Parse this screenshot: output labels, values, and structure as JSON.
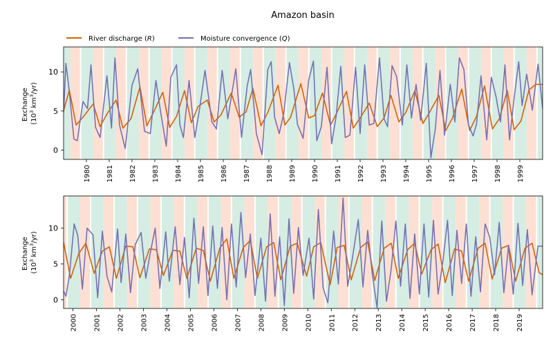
{
  "title": "Amazon basin",
  "legend": {
    "placement": "top-left, above panels",
    "items": [
      {
        "label": "River discharge (R)",
        "label_main": "River discharge (",
        "label_symbol": "R",
        "label_end": ")",
        "color": "#d95f02"
      },
      {
        "label": "Moisture convergence (Q)",
        "label_main": "Moisture convergence (",
        "label_symbol": "Q",
        "label_end": ")",
        "color": "#7570b3"
      }
    ]
  },
  "colors": {
    "wet_band": "#d5ede3",
    "dry_band": "#fde0d3",
    "discharge": "#d95f02",
    "convergence": "#7570b3"
  },
  "chart_data": [
    {
      "type": "line",
      "panel": "top",
      "ylabel": "Exchange (10^3 km^3/yr)",
      "ylabel_line1": "Exchange",
      "ylabel_line2_pre": "(10",
      "ylabel_line2_sup": "3",
      "ylabel_line2_mid": " km",
      "ylabel_line2_sup2": "3",
      "ylabel_line2_post": "/yr)",
      "xlim": [
        1979.0,
        2000.0
      ],
      "ylim": [
        -1.2,
        13.2
      ],
      "yticks": [
        0,
        5,
        10
      ],
      "xtick_labels": [
        "1980",
        "1981",
        "1982",
        "1983",
        "1984",
        "1985",
        "1986",
        "1987",
        "1988",
        "1989",
        "1990",
        "1991",
        "1992",
        "1993",
        "1994",
        "1995",
        "1996",
        "1997",
        "1998",
        "1999"
      ],
      "grid": false,
      "band_note": "Alternating shaded seasonal bands (green and salmon) each year",
      "series": [
        {
          "name": "River discharge (R)",
          "x": [
            1979.0,
            1979.25,
            1979.55,
            1979.85,
            1980.3,
            1980.6,
            1980.9,
            1981.3,
            1981.6,
            1981.95,
            1982.35,
            1982.65,
            1982.95,
            1983.35,
            1983.65,
            1983.95,
            1984.3,
            1984.6,
            1984.9,
            1985.3,
            1985.6,
            1985.9,
            1986.35,
            1986.7,
            1987.0,
            1987.3,
            1987.65,
            1987.95,
            1988.4,
            1988.7,
            1988.95,
            1989.4,
            1989.75,
            1990.0,
            1990.35,
            1990.7,
            1990.95,
            1991.4,
            1991.7,
            1992.0,
            1992.4,
            1992.75,
            1993.05,
            1993.35,
            1993.7,
            1994.0,
            1994.4,
            1994.75,
            1995.0,
            1995.45,
            1995.75,
            1996.05,
            1996.45,
            1996.8,
            1997.1,
            1997.45,
            1997.8,
            1998.1,
            1998.45,
            1998.75,
            1999.05,
            1999.4,
            1999.7,
            2000.0
          ],
          "values": [
            5.0,
            7.7,
            3.2,
            4.2,
            5.9,
            3.0,
            4.6,
            6.4,
            2.8,
            4.0,
            8.1,
            3.1,
            4.9,
            7.4,
            2.9,
            4.3,
            7.6,
            3.5,
            5.6,
            6.4,
            3.6,
            4.5,
            7.3,
            4.2,
            4.9,
            7.9,
            3.1,
            4.8,
            8.3,
            3.2,
            4.2,
            8.5,
            4.1,
            4.4,
            7.3,
            3.2,
            4.6,
            7.5,
            2.8,
            4.1,
            6.0,
            3.0,
            4.1,
            7.0,
            3.6,
            4.8,
            7.6,
            3.4,
            4.6,
            7.0,
            2.5,
            4.1,
            7.8,
            2.5,
            4.3,
            8.2,
            2.7,
            4.0,
            7.6,
            2.6,
            3.7,
            7.7,
            8.4,
            8.4
          ]
        },
        {
          "name": "Moisture convergence (Q)",
          "x": [
            1979.0,
            1979.1,
            1979.25,
            1979.45,
            1979.6,
            1979.85,
            1980.05,
            1980.2,
            1980.4,
            1980.6,
            1980.9,
            1981.1,
            1981.25,
            1981.45,
            1981.7,
            1982.0,
            1982.25,
            1982.55,
            1982.8,
            1983.05,
            1983.25,
            1983.5,
            1983.7,
            1983.95,
            1984.1,
            1984.25,
            1984.5,
            1984.75,
            1984.95,
            1985.2,
            1985.5,
            1985.7,
            1985.95,
            1986.2,
            1986.55,
            1986.8,
            1987.05,
            1987.2,
            1987.45,
            1987.7,
            1987.95,
            1988.1,
            1988.25,
            1988.45,
            1988.65,
            1988.9,
            1989.1,
            1989.25,
            1989.5,
            1989.75,
            1989.95,
            1990.1,
            1990.3,
            1990.55,
            1990.75,
            1990.95,
            1991.15,
            1991.35,
            1991.55,
            1991.8,
            1992.0,
            1992.2,
            1992.4,
            1992.6,
            1992.85,
            1993.05,
            1993.2,
            1993.4,
            1993.6,
            1993.85,
            1994.05,
            1994.25,
            1994.45,
            1994.65,
            1994.9,
            1995.1,
            1995.3,
            1995.5,
            1995.7,
            1995.95,
            1996.15,
            1996.35,
            1996.55,
            1996.75,
            1996.95,
            1997.1,
            1997.3,
            1997.55,
            1997.75,
            1997.95,
            1998.15,
            1998.35,
            1998.55,
            1998.75,
            1998.95,
            1999.1,
            1999.3,
            1999.55,
            1999.8,
            2000.0
          ],
          "values": [
            4.8,
            11.1,
            7.5,
            1.4,
            1.2,
            6.2,
            5.3,
            10.9,
            2.9,
            1.6,
            9.5,
            2.8,
            11.8,
            3.2,
            0.2,
            8.3,
            10.4,
            2.4,
            2.1,
            8.9,
            4.9,
            0.5,
            9.3,
            10.9,
            3.2,
            1.6,
            8.9,
            1.6,
            5.1,
            10.2,
            3.6,
            2.7,
            10.2,
            4.0,
            10.4,
            1.6,
            8.2,
            10.3,
            2.1,
            -0.6,
            10.3,
            11.3,
            4.2,
            2.1,
            4.7,
            11.2,
            7.7,
            3.3,
            1.5,
            9.0,
            11.4,
            1.2,
            3.0,
            10.6,
            0.8,
            4.4,
            10.7,
            1.6,
            1.9,
            10.6,
            2.1,
            10.9,
            3.2,
            3.4,
            11.8,
            4.0,
            3.0,
            10.8,
            9.4,
            3.2,
            10.9,
            4.1,
            8.4,
            3.8,
            11.1,
            -1.0,
            2.8,
            10.2,
            1.9,
            8.4,
            3.6,
            11.8,
            10.3,
            3.2,
            1.8,
            3.3,
            9.5,
            1.3,
            9.3,
            6.9,
            3.6,
            10.9,
            1.3,
            6.7,
            11.3,
            5.7,
            9.7,
            5.1,
            11.0,
            5.3
          ]
        }
      ]
    },
    {
      "type": "line",
      "panel": "bottom",
      "ylabel": "Exchange (10^3 km^3/yr)",
      "ylabel_line1": "Exchange",
      "ylabel_line2_pre": "(10",
      "ylabel_line2_sup": "3",
      "ylabel_line2_mid": " km",
      "ylabel_line2_sup2": "3",
      "ylabel_line2_post": "/yr)",
      "xlim": [
        1999.6,
        2020.0
      ],
      "ylim": [
        -1.2,
        14.5
      ],
      "yticks": [
        0,
        5,
        10
      ],
      "xtick_labels": [
        "2000",
        "2001",
        "2002",
        "2003",
        "2004",
        "2005",
        "2006",
        "2007",
        "2008",
        "2009",
        "2010",
        "2011",
        "2012",
        "2013",
        "2014",
        "2015",
        "2016",
        "2017",
        "2018",
        "2019"
      ],
      "grid": false,
      "band_note": "Alternating shaded seasonal bands (green and salmon) each year",
      "series": [
        {
          "name": "River discharge (R)",
          "x": [
            1999.6,
            1999.9,
            2000.25,
            2000.55,
            2000.9,
            2001.25,
            2001.55,
            2001.85,
            2002.25,
            2002.55,
            2002.85,
            2003.25,
            2003.55,
            2003.85,
            2004.25,
            2004.55,
            2004.85,
            2005.25,
            2005.55,
            2005.85,
            2006.25,
            2006.55,
            2006.85,
            2007.25,
            2007.55,
            2007.85,
            2008.25,
            2008.55,
            2008.85,
            2009.25,
            2009.55,
            2009.95,
            2010.25,
            2010.55,
            2010.95,
            2011.25,
            2011.55,
            2011.85,
            2012.25,
            2012.55,
            2012.85,
            2013.25,
            2013.55,
            2013.85,
            2014.25,
            2014.55,
            2014.85,
            2015.25,
            2015.55,
            2015.85,
            2016.25,
            2016.55,
            2016.85,
            2017.25,
            2017.55,
            2017.85,
            2018.25,
            2018.55,
            2018.85,
            2019.25,
            2019.55,
            2019.85,
            2020.0
          ],
          "values": [
            8.0,
            3.0,
            6.5,
            7.9,
            3.7,
            6.8,
            7.4,
            3.0,
            7.5,
            7.4,
            3.1,
            7.1,
            7.0,
            3.4,
            6.9,
            6.8,
            3.0,
            7.2,
            6.9,
            2.6,
            7.2,
            8.5,
            3.0,
            7.3,
            8.3,
            3.0,
            7.4,
            8.0,
            2.8,
            7.5,
            7.9,
            3.3,
            7.4,
            8.0,
            2.1,
            7.3,
            7.6,
            2.8,
            7.3,
            8.1,
            2.7,
            7.2,
            7.9,
            3.0,
            7.0,
            7.9,
            3.6,
            7.0,
            7.8,
            2.4,
            7.1,
            6.8,
            2.6,
            7.2,
            7.9,
            2.9,
            7.2,
            7.6,
            2.6,
            7.2,
            7.9,
            3.8,
            3.5
          ]
        },
        {
          "name": "Moisture convergence (Q)",
          "x": [
            1999.6,
            1999.7,
            1999.85,
            2000.05,
            2000.2,
            2000.4,
            2000.6,
            2000.85,
            2001.05,
            2001.25,
            2001.45,
            2001.65,
            2001.9,
            2002.05,
            2002.25,
            2002.45,
            2002.65,
            2002.9,
            2003.1,
            2003.3,
            2003.5,
            2003.7,
            2003.95,
            2004.1,
            2004.35,
            2004.55,
            2004.75,
            2004.95,
            2005.15,
            2005.35,
            2005.55,
            2005.75,
            2005.95,
            2006.15,
            2006.35,
            2006.55,
            2006.75,
            2006.95,
            2007.15,
            2007.35,
            2007.55,
            2007.75,
            2008.0,
            2008.2,
            2008.4,
            2008.6,
            2008.8,
            2009.0,
            2009.2,
            2009.4,
            2009.6,
            2009.8,
            2010.05,
            2010.25,
            2010.45,
            2010.65,
            2010.85,
            2011.1,
            2011.3,
            2011.5,
            2011.7,
            2011.9,
            2012.15,
            2012.35,
            2012.55,
            2012.75,
            2012.95,
            2013.15,
            2013.35,
            2013.55,
            2013.75,
            2013.95,
            2014.15,
            2014.35,
            2014.55,
            2014.75,
            2014.95,
            2015.15,
            2015.35,
            2015.55,
            2015.75,
            2015.95,
            2016.15,
            2016.35,
            2016.55,
            2016.75,
            2016.95,
            2017.15,
            2017.35,
            2017.55,
            2017.75,
            2017.95,
            2018.15,
            2018.35,
            2018.55,
            2018.75,
            2018.95,
            2019.15,
            2019.35,
            2019.55,
            2019.8,
            2020.0
          ],
          "values": [
            1.2,
            0.5,
            3.5,
            10.6,
            9.0,
            1.5,
            10.0,
            9.1,
            0.3,
            9.6,
            3.3,
            1.1,
            9.9,
            2.4,
            9.2,
            1.0,
            7.7,
            9.4,
            3.0,
            6.7,
            10.0,
            1.6,
            9.5,
            2.6,
            10.2,
            2.1,
            8.7,
            0.3,
            11.4,
            2.3,
            10.2,
            0.6,
            10.3,
            1.6,
            10.1,
            0.0,
            10.6,
            1.8,
            12.2,
            3.1,
            9.2,
            0.6,
            8.6,
            -0.2,
            12.0,
            0.5,
            8.8,
            -0.8,
            11.3,
            0.9,
            10.1,
            3.4,
            8.6,
            0.1,
            12.6,
            1.7,
            -0.4,
            9.6,
            2.2,
            14.2,
            1.9,
            5.8,
            11.2,
            1.8,
            9.7,
            3.5,
            -1.1,
            11.0,
            -0.2,
            4.3,
            11.0,
            1.9,
            10.6,
            0.2,
            9.2,
            0.8,
            10.6,
            0.4,
            11.1,
            0.8,
            5.3,
            11.1,
            0.6,
            9.7,
            2.3,
            10.6,
            0.5,
            8.8,
            1.1,
            10.6,
            8.7,
            3.5,
            10.8,
            1.0,
            7.6,
            0.8,
            10.7,
            2.0,
            9.8,
            0.7,
            7.5,
            7.5
          ]
        }
      ]
    }
  ]
}
